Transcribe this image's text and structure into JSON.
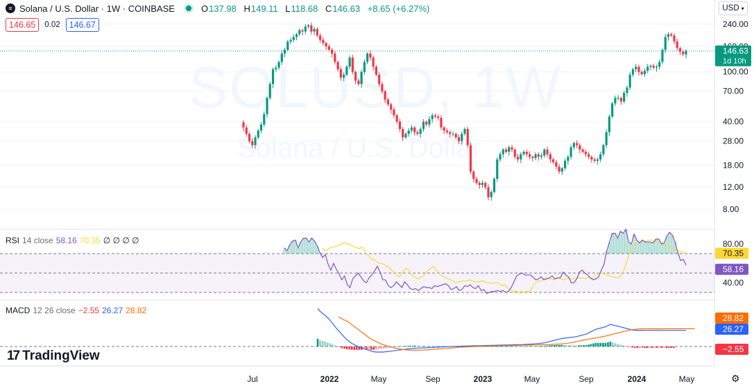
{
  "header": {
    "symbol_icon": "solana-icon",
    "title": "Solana / U.S. Dollar · 1W · COINBASE",
    "ohlc": {
      "o_label": "O",
      "o": "137.98",
      "h_label": "H",
      "h": "149.11",
      "l_label": "L",
      "l": "118.68",
      "c_label": "C",
      "c": "146.63"
    },
    "change": "+8.65 (+6.27%)"
  },
  "pricebox": {
    "sell": "146.65",
    "spread": "0.02",
    "buy": "146.67"
  },
  "currency": "USD",
  "watermark": {
    "symbol": "SOLUSD, 1W",
    "name": "Solana / U.S. Dollar"
  },
  "logo": "TradingView",
  "colors": {
    "up": "#089981",
    "down": "#f23645",
    "rsi": "#7e57c2",
    "rsi_ma": "#fdd835",
    "macd": "#2962ff",
    "signal": "#ff6d00"
  },
  "chart_data": [
    {
      "type": "candlestick",
      "panel": "price",
      "scale": "log",
      "y_ticks": [
        "240.00",
        "160.00",
        "100.00",
        "70.00",
        "40.00",
        "28.00",
        "18.00",
        "12.00",
        "8.00"
      ],
      "current_price": {
        "value": 146.63,
        "label": "146.63",
        "countdown": "1d 10h"
      },
      "x_ticks": [
        "Jul",
        "2022",
        "May",
        "Sep",
        "2023",
        "May",
        "Sep",
        "2024",
        "May"
      ],
      "close": [
        36,
        32,
        28,
        26,
        30,
        34,
        38,
        46,
        62,
        80,
        105,
        108,
        120,
        140,
        150,
        175,
        180,
        190,
        200,
        215,
        210,
        230,
        235,
        210,
        220,
        195,
        180,
        170,
        160,
        150,
        140,
        120,
        105,
        90,
        95,
        110,
        130,
        100,
        85,
        80,
        100,
        120,
        140,
        130,
        110,
        95,
        80,
        70,
        60,
        55,
        50,
        45,
        40,
        35,
        30,
        32,
        34,
        36,
        33,
        32,
        35,
        40,
        38,
        42,
        45,
        44,
        43,
        36,
        34,
        33,
        32,
        32,
        30,
        28,
        32,
        35,
        26,
        16,
        14,
        13,
        12.5,
        13,
        12,
        10,
        11,
        14,
        20,
        22,
        24,
        23,
        25,
        24,
        21,
        20,
        22,
        23,
        22,
        21,
        20.5,
        22,
        21,
        21.5,
        24,
        22,
        20,
        19,
        17.5,
        16,
        17,
        19.5,
        21,
        25,
        27,
        26,
        24,
        23,
        22,
        21,
        20,
        19.5,
        20,
        22,
        26,
        33,
        44,
        56,
        62,
        62,
        58,
        68,
        75,
        95,
        105,
        110,
        100,
        96,
        102,
        110,
        112,
        108,
        110,
        120,
        150,
        190,
        200,
        195,
        175,
        155,
        145,
        138,
        146.63
      ]
    },
    {
      "type": "line",
      "panel": "RSI",
      "label": "RSI",
      "params": "14 close",
      "value_label": "58.16",
      "ma_label": "70.35",
      "extra": "∅ ∅ ∅ ∅",
      "y_ticks": [
        "80.00",
        "40.00"
      ],
      "bands": [
        70,
        50,
        30
      ],
      "series": [
        {
          "values": [
            76,
            73,
            74,
            76,
            77,
            77,
            78,
            79,
            80,
            82,
            80,
            80,
            78,
            77,
            76,
            75,
            77,
            73,
            70,
            67,
            64,
            64,
            62,
            60,
            60,
            59,
            57,
            56,
            53,
            51,
            48,
            46,
            48,
            52,
            55,
            53,
            49,
            47,
            45,
            44,
            46,
            47,
            50,
            53,
            55,
            57,
            54,
            51,
            48,
            47,
            45,
            44,
            43,
            42,
            40,
            41,
            41,
            42,
            42,
            42,
            43,
            42,
            41,
            41,
            41,
            42,
            41,
            40,
            40,
            39,
            40,
            40,
            39,
            37,
            38,
            36,
            33,
            32,
            31,
            31,
            30,
            31,
            30,
            31,
            31,
            33,
            38,
            41,
            42,
            42,
            44,
            45,
            45,
            44,
            43,
            44,
            45,
            44,
            43,
            44,
            45,
            44,
            44,
            45,
            45,
            45,
            45,
            44,
            45,
            45,
            45,
            47,
            49,
            50,
            50,
            49,
            48,
            47,
            46,
            46,
            45,
            46,
            49,
            55,
            63,
            70,
            76,
            79,
            81,
            82,
            82,
            83,
            83,
            84,
            84,
            82,
            82,
            82,
            81,
            80,
            78,
            77,
            76,
            75,
            74,
            73,
            72,
            71,
            70.35
          ]
        },
        {
          "values": [
            76,
            73,
            79,
            83,
            84,
            76,
            82,
            86,
            86,
            82,
            86,
            83,
            78,
            71,
            66,
            69,
            59,
            53,
            60,
            54,
            49,
            43,
            47,
            38,
            35,
            44,
            47,
            50,
            46,
            42,
            40,
            45,
            48,
            52,
            57,
            51,
            43,
            43,
            37,
            35,
            37,
            41,
            38,
            35,
            41,
            38,
            34,
            33,
            34,
            32,
            34,
            36,
            35,
            35,
            34,
            37,
            36,
            37,
            38,
            39,
            37,
            33,
            34,
            36,
            32,
            33,
            37,
            36,
            38,
            35,
            34,
            37,
            32,
            33,
            29,
            30,
            31,
            31,
            32,
            31,
            32,
            30,
            31,
            35,
            41,
            47,
            49,
            50,
            48,
            48,
            48,
            46,
            43,
            44,
            46,
            43,
            44,
            45,
            47,
            44,
            45,
            45,
            51,
            48,
            46,
            40,
            40,
            44,
            51,
            53,
            50,
            48,
            45,
            43,
            44,
            46,
            53,
            59,
            73,
            82,
            91,
            91,
            86,
            93,
            91,
            95,
            82,
            80,
            90,
            84,
            81,
            84,
            82,
            82,
            82,
            81,
            85,
            85,
            80,
            81,
            88,
            92,
            89,
            82,
            71,
            63,
            64,
            58.16
          ]
        }
      ]
    },
    {
      "type": "line",
      "panel": "MACD",
      "label": "MACD",
      "params": "12 26 close",
      "values_label": [
        "−2.55",
        "26.27",
        "28.82"
      ],
      "y_scale_labels": [
        "28.82",
        "26.27",
        "−2.55"
      ],
      "series": [
        {
          "values": [
            62,
            57,
            54,
            51,
            47,
            43,
            38,
            33,
            28,
            24,
            19,
            15,
            11,
            8,
            5,
            3,
            1,
            -1,
            -2.5,
            -3.5,
            -5,
            -6,
            -7.5,
            -8.5,
            -9,
            -9,
            -9,
            -9,
            -8.5,
            -8,
            -7.5,
            -7,
            -6.5,
            -6,
            -5.5,
            -5,
            -4.5,
            -4,
            -3.5,
            -3.1,
            -2.8,
            -2.6,
            -2.5,
            -2.3,
            -2.1,
            -1.9,
            -1.7,
            -1.5,
            -1.3,
            -1.1,
            -0.9,
            -0.7,
            -0.5,
            -0.3,
            -0.2,
            0,
            0.2,
            0.4,
            0.5,
            0.6,
            0.7,
            0.8,
            0.9,
            1,
            1.1,
            1.2,
            1.3,
            1.4,
            1.5,
            1.6,
            1.7,
            1.8,
            1.9,
            2,
            2.1,
            2.2,
            2.3,
            2.4,
            2.5,
            2.6,
            2.7,
            2.8,
            2.9,
            3,
            3.2,
            3.4,
            3.6,
            3.8,
            4,
            4.3,
            4.6,
            5,
            5.5,
            6,
            7,
            8,
            9,
            10,
            11,
            12,
            13,
            13.5,
            14,
            14.5,
            15,
            15.5,
            16,
            17,
            18,
            19,
            20,
            22,
            24,
            26,
            28,
            29,
            30,
            31,
            32,
            34,
            36,
            35,
            34,
            33,
            32,
            31,
            30,
            29,
            28,
            27,
            26.5,
            26,
            26.27,
            26.4,
            26.3,
            26.2,
            26.3,
            26.27,
            26.3,
            26.27,
            26.3,
            26.27,
            26.3,
            26.3,
            26.27,
            26.27,
            26.27,
            26.27,
            26.27,
            26.27,
            26.27,
            26.27
          ]
        },
        {
          "values": [
            48,
            46,
            44,
            42,
            40,
            37,
            34,
            31,
            28,
            25,
            22,
            19,
            16,
            13,
            11,
            9,
            7,
            5,
            3.5,
            2,
            0.8,
            -0.5,
            -1.5,
            -2.5,
            -3.3,
            -4,
            -4.6,
            -5.1,
            -5.5,
            -5.8,
            -6,
            -6.1,
            -6.1,
            -6,
            -5.9,
            -5.7,
            -5.5,
            -5.2,
            -4.9,
            -4.6,
            -4.3,
            -4,
            -3.7,
            -3.4,
            -3.1,
            -2.8,
            -2.5,
            -2.2,
            -1.9,
            -1.6,
            -1.3,
            -1,
            -0.8,
            -0.6,
            -0.4,
            -0.2,
            0,
            0.2,
            0.3,
            0.4,
            0.5,
            0.6,
            0.7,
            0.8,
            0.9,
            1,
            1.1,
            1.2,
            1.3,
            1.4,
            1.5,
            1.6,
            1.7,
            1.8,
            1.9,
            2,
            2.1,
            2.2,
            2.3,
            2.4,
            2.5,
            2.6,
            2.7,
            2.8,
            2.9,
            3,
            3.1,
            3.3,
            3.5,
            3.7,
            3.9,
            4.2,
            4.5,
            4.9,
            5.4,
            6,
            6.7,
            7.5,
            8.3,
            9.2,
            10,
            10.8,
            11.5,
            12.2,
            12.9,
            13.6,
            14.3,
            15,
            15.8,
            16.6,
            17.5,
            18.5,
            19.5,
            20.5,
            21.5,
            22.5,
            23.5,
            24.5,
            25.5,
            26.5,
            27.2,
            27.8,
            28.2,
            28.5,
            28.7,
            28.8,
            28.8,
            28.8,
            28.8,
            28.82,
            28.8,
            28.82,
            28.8,
            28.82,
            28.82,
            28.82,
            28.82,
            28.82,
            28.82,
            28.82,
            28.82,
            28.82,
            28.82,
            28.82,
            28.82,
            28.82,
            28.82
          ]
        }
      ]
    }
  ]
}
